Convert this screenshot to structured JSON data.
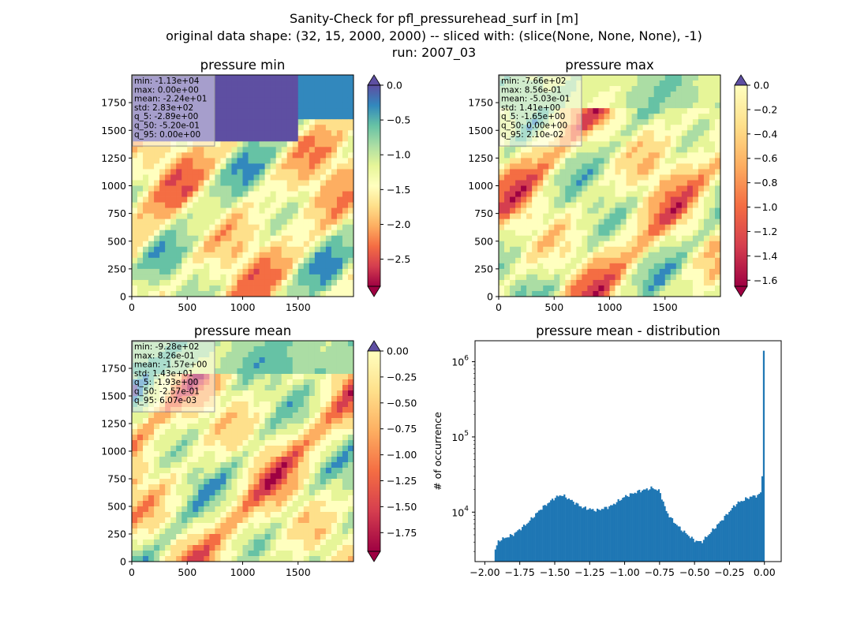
{
  "figure": {
    "title_lines": [
      "Sanity-Check for pfl_pressurehead_surf in [m]",
      "original data shape: (32, 15, 2000, 2000) -- sliced with: (slice(None, None, None), -1)",
      "run: 2007_03"
    ]
  },
  "chart_data": [
    {
      "type": "heatmap",
      "title": "pressure min",
      "xlim": [
        0,
        2000
      ],
      "ylim": [
        0,
        2000
      ],
      "x_ticks": [
        0,
        500,
        1000,
        1500
      ],
      "y_ticks": [
        0,
        250,
        500,
        750,
        1000,
        1250,
        1500,
        1750
      ],
      "colormap": "Spectral",
      "colorbar": {
        "range": [
          -2.89,
          0.0
        ],
        "ticks": [
          "0.0",
          "−0.5",
          "−1.0",
          "−1.5",
          "−2.0",
          "−2.5"
        ],
        "tick_values": [
          0.0,
          -0.5,
          -1.0,
          -1.5,
          -2.0,
          -2.5
        ],
        "extend": "both"
      },
      "stats": [
        "min: -1.13e+04",
        "max: 0.00e+00",
        "mean: -2.24e+01",
        "std: 2.83e+02",
        "q_5: -2.89e+00",
        "q_50: -5.20e-01",
        "q_95: 0.00e+00"
      ]
    },
    {
      "type": "heatmap",
      "title": "pressure max",
      "xlim": [
        0,
        2000
      ],
      "ylim": [
        0,
        2000
      ],
      "x_ticks": [
        0,
        500,
        1000,
        1500
      ],
      "y_ticks": [
        0,
        250,
        500,
        750,
        1000,
        1250,
        1500,
        1750
      ],
      "colormap": "Spectral",
      "colorbar": {
        "range": [
          -1.65,
          0.0
        ],
        "ticks": [
          "0.0",
          "−0.2",
          "−0.4",
          "−0.6",
          "−0.8",
          "−1.0",
          "−1.2",
          "−1.4",
          "−1.6"
        ],
        "tick_values": [
          0.0,
          -0.2,
          -0.4,
          -0.6,
          -0.8,
          -1.0,
          -1.2,
          -1.4,
          -1.6
        ],
        "extend": "both"
      },
      "stats": [
        "min: -7.66e+02",
        "max: 8.56e-01",
        "mean: -5.03e-01",
        "std: 1.41e+00",
        "q_5: -1.65e+00",
        "q_50: 0.00e+00",
        "q_95: 2.10e-02"
      ]
    },
    {
      "type": "heatmap",
      "title": "pressure mean",
      "xlim": [
        0,
        2000
      ],
      "ylim": [
        0,
        2000
      ],
      "x_ticks": [
        0,
        500,
        1000,
        1500
      ],
      "y_ticks": [
        0,
        250,
        500,
        750,
        1000,
        1250,
        1500,
        1750
      ],
      "colormap": "Spectral",
      "colorbar": {
        "range": [
          -1.93,
          0.0
        ],
        "ticks": [
          "0.00",
          "−0.25",
          "−0.50",
          "−0.75",
          "−1.00",
          "−1.25",
          "−1.50",
          "−1.75"
        ],
        "tick_values": [
          0.0,
          -0.25,
          -0.5,
          -0.75,
          -1.0,
          -1.25,
          -1.5,
          -1.75
        ],
        "extend": "both"
      },
      "stats": [
        "min: -9.28e+02",
        "max: 8.26e-01",
        "mean: -1.57e+00",
        "std: 1.43e+01",
        "q_5: -1.93e+00",
        "q_50: -2.57e-01",
        "q_95: 6.07e-03"
      ]
    },
    {
      "type": "bar",
      "title": "pressure mean - distribution",
      "ylabel": "# of occurrence",
      "yscale": "log",
      "xlim": [
        -2.07,
        0.12
      ],
      "ylim": [
        2200,
        1900000
      ],
      "x_ticks": [
        -2.0,
        -1.75,
        -1.5,
        -1.25,
        -1.0,
        -0.75,
        -0.5,
        -0.25,
        0.0
      ],
      "x_tick_labels": [
        "−2.00",
        "−1.75",
        "−1.50",
        "−1.25",
        "−1.00",
        "−0.75",
        "−0.50",
        "−0.25",
        "0.00"
      ],
      "y_ticks": [
        10000,
        100000,
        1000000
      ],
      "color": "#1f77b4",
      "hist_range": [
        -1.93,
        0.0
      ],
      "hist_keypoints": [
        [
          -1.93,
          3000
        ],
        [
          -1.9,
          4200
        ],
        [
          -1.8,
          5000
        ],
        [
          -1.7,
          7000
        ],
        [
          -1.6,
          11000
        ],
        [
          -1.5,
          15500
        ],
        [
          -1.45,
          17000
        ],
        [
          -1.4,
          15000
        ],
        [
          -1.3,
          11500
        ],
        [
          -1.2,
          10500
        ],
        [
          -1.1,
          12000
        ],
        [
          -1.0,
          16000
        ],
        [
          -0.9,
          19000
        ],
        [
          -0.8,
          21000
        ],
        [
          -0.75,
          19000
        ],
        [
          -0.7,
          10000
        ],
        [
          -0.65,
          7500
        ],
        [
          -0.6,
          6000
        ],
        [
          -0.55,
          5000
        ],
        [
          -0.5,
          4200
        ],
        [
          -0.45,
          4000
        ],
        [
          -0.4,
          5000
        ],
        [
          -0.3,
          8000
        ],
        [
          -0.2,
          13000
        ],
        [
          -0.1,
          16000
        ],
        [
          -0.03,
          17000
        ],
        [
          -0.01,
          30000
        ],
        [
          0.0,
          1400000
        ]
      ]
    }
  ]
}
